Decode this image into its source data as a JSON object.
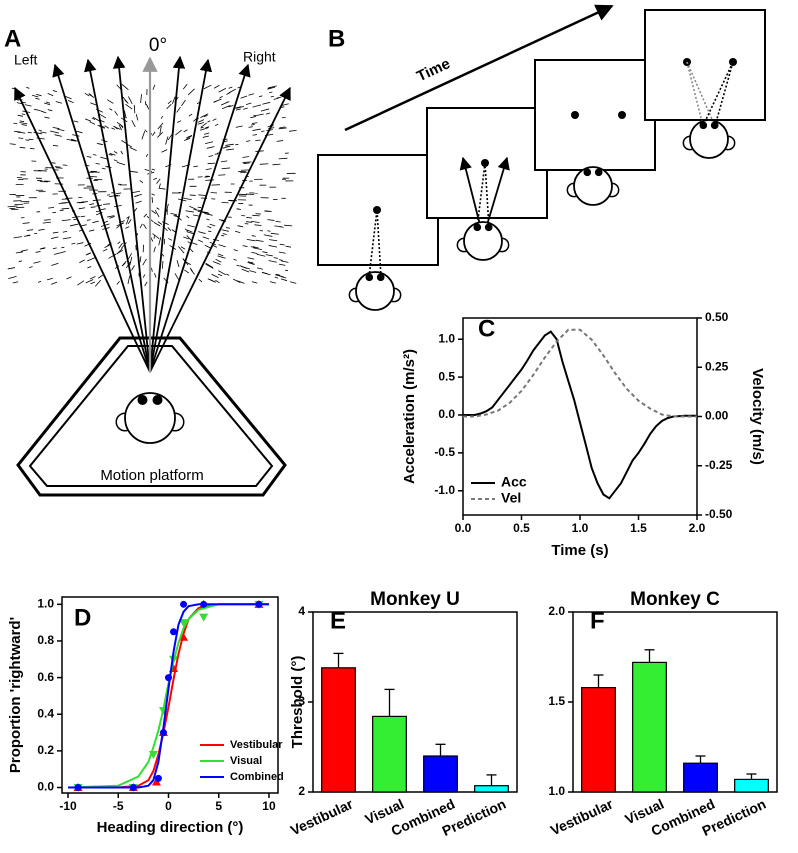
{
  "diagram": {
    "a": {
      "label": "A",
      "left": "Left",
      "zero": "0°",
      "right": "Right",
      "platform": "Motion platform"
    },
    "b": {
      "label": "B",
      "time": "Time"
    }
  },
  "chart_data": [
    {
      "type": "line",
      "panel": "C",
      "xlabel": "Time (s)",
      "ylabel": "Acceleration (m/s²)",
      "y2label": "Velocity (m/s)",
      "xlim": [
        0,
        2
      ],
      "xticks": [
        {
          "value": 0,
          "label": "0.0"
        },
        {
          "value": 0.5,
          "label": "0.5"
        },
        {
          "value": 1,
          "label": "1.0"
        },
        {
          "value": 1.5,
          "label": "1.5"
        },
        {
          "value": 2,
          "label": "2.0"
        }
      ],
      "ylim": [
        -1.32,
        1.28
      ],
      "yticks": [
        {
          "value": -1,
          "label": "-1.0"
        },
        {
          "value": -0.5,
          "label": "-0.5"
        },
        {
          "value": 0,
          "label": "0.0"
        },
        {
          "value": 0.5,
          "label": "0.5"
        },
        {
          "value": 1,
          "label": "1.0"
        }
      ],
      "y2lim": [
        -0.5,
        0.5
      ],
      "y2ticks": [
        {
          "value": -0.5,
          "label": "-0.50"
        },
        {
          "value": -0.25,
          "label": "-0.25"
        },
        {
          "value": 0,
          "label": "0.00"
        },
        {
          "value": 0.25,
          "label": "0.25"
        },
        {
          "value": 0.5,
          "label": "0.50"
        }
      ],
      "legend": "lower left",
      "series": [
        {
          "name": "Acc",
          "color": "#000000",
          "style": "solid",
          "x": [
            0,
            0.1,
            0.15,
            0.2,
            0.25,
            0.3,
            0.35,
            0.4,
            0.45,
            0.5,
            0.55,
            0.6,
            0.65,
            0.7,
            0.75,
            0.8,
            0.85,
            0.9,
            0.95,
            1,
            1.05,
            1.1,
            1.15,
            1.2,
            1.25,
            1.3,
            1.35,
            1.4,
            1.45,
            1.5,
            1.55,
            1.6,
            1.65,
            1.7,
            1.75,
            1.8,
            1.9,
            2
          ],
          "values": [
            0,
            0,
            0.02,
            0.05,
            0.1,
            0.2,
            0.3,
            0.4,
            0.5,
            0.6,
            0.72,
            0.85,
            0.95,
            1.05,
            1.1,
            1.0,
            0.7,
            0.45,
            0.2,
            -0.1,
            -0.4,
            -0.7,
            -0.9,
            -1.05,
            -1.1,
            -1.0,
            -0.9,
            -0.75,
            -0.6,
            -0.5,
            -0.38,
            -0.25,
            -0.15,
            -0.08,
            -0.04,
            -0.02,
            -0.01,
            -0.01
          ]
        },
        {
          "name": "Vel",
          "color": "#777777",
          "style": "dashed",
          "axis": "y2",
          "x": [
            0,
            0.1,
            0.2,
            0.3,
            0.4,
            0.5,
            0.6,
            0.7,
            0.8,
            0.9,
            1,
            1.1,
            1.2,
            1.3,
            1.4,
            1.5,
            1.6,
            1.7,
            1.8,
            1.9,
            2
          ],
          "values": [
            0,
            0,
            0.01,
            0.03,
            0.07,
            0.13,
            0.21,
            0.3,
            0.38,
            0.44,
            0.44,
            0.39,
            0.31,
            0.22,
            0.14,
            0.08,
            0.04,
            0.01,
            0,
            0,
            0
          ]
        }
      ]
    },
    {
      "type": "scatter",
      "panel": "D",
      "xlabel": "Heading direction (°)",
      "ylabel": "Proportion 'rightward'",
      "xlim": [
        -10.6,
        10.9
      ],
      "xticks": [
        -10,
        -5,
        0,
        5,
        10
      ],
      "ylim": [
        -0.03,
        1.04
      ],
      "yticks": [
        {
          "value": 0,
          "label": "0.0"
        },
        {
          "value": 0.2,
          "label": "0.2"
        },
        {
          "value": 0.4,
          "label": "0.4"
        },
        {
          "value": 0.6,
          "label": "0.6"
        },
        {
          "value": 0.8,
          "label": "0.8"
        },
        {
          "value": 1,
          "label": "1.0"
        }
      ],
      "legend": "lower right",
      "fit_x": [
        -10,
        -5,
        -3,
        -2,
        -1.5,
        -1,
        -0.5,
        0,
        0.5,
        1,
        1.5,
        2,
        3,
        5,
        10
      ],
      "series": [
        {
          "name": "Vestibular",
          "color": "#ff0000",
          "marker": "triangle",
          "x": [
            -9,
            -3.5,
            -1.2,
            -0.5,
            0.5,
            1.5,
            3.5,
            9
          ],
          "values": [
            0,
            0,
            0.03,
            0.3,
            0.65,
            0.82,
            1,
            1
          ],
          "fit_values": [
            0,
            0,
            0.01,
            0.04,
            0.09,
            0.18,
            0.3,
            0.44,
            0.59,
            0.73,
            0.84,
            0.92,
            0.98,
            1,
            1
          ]
        },
        {
          "name": "Visual",
          "color": "#33dd33",
          "marker": "triangle-down",
          "x": [
            -9,
            -3.5,
            -1.5,
            -0.5,
            0.5,
            1.5,
            3.5,
            9
          ],
          "values": [
            0,
            0,
            0.18,
            0.42,
            0.7,
            0.9,
            0.93,
            1
          ],
          "fit_values": [
            0,
            0.01,
            0.06,
            0.14,
            0.22,
            0.31,
            0.43,
            0.57,
            0.69,
            0.79,
            0.87,
            0.92,
            0.97,
            1,
            1
          ]
        },
        {
          "name": "Combined",
          "color": "#0000ff",
          "marker": "circle",
          "x": [
            -9,
            -3.5,
            -1,
            -0.5,
            0,
            0.5,
            1.5,
            3.5,
            9
          ],
          "values": [
            0,
            0,
            0.05,
            0.3,
            0.6,
            0.85,
            1,
            1,
            1
          ],
          "fit_values": [
            0,
            0,
            0,
            0.01,
            0.04,
            0.14,
            0.33,
            0.54,
            0.74,
            0.89,
            0.96,
            0.99,
            1,
            1,
            1
          ]
        }
      ]
    },
    {
      "type": "bar",
      "panel": "E",
      "title": "Monkey U",
      "ylabel": "Threshold (°)",
      "categories": [
        "Vestibular",
        "Visual",
        "Combined",
        "Prediction"
      ],
      "values": [
        3.38,
        2.84,
        2.4,
        2.07
      ],
      "errors": [
        0.16,
        0.3,
        0.13,
        0.12
      ],
      "colors": [
        "#ff0000",
        "#33ee33",
        "#0000ff",
        "#00ffff"
      ],
      "ylim": [
        2,
        4
      ],
      "yticks": [
        2,
        3,
        4
      ]
    },
    {
      "type": "bar",
      "panel": "F",
      "title": "Monkey C",
      "categories": [
        "Vestibular",
        "Visual",
        "Combined",
        "Prediction"
      ],
      "values": [
        1.58,
        1.72,
        1.16,
        1.07
      ],
      "errors": [
        0.07,
        0.07,
        0.04,
        0.03
      ],
      "colors": [
        "#ff0000",
        "#33ee33",
        "#0000ff",
        "#00ffff"
      ],
      "ylim": [
        1,
        2
      ],
      "yticks": [
        {
          "value": 1,
          "label": "1.0"
        },
        {
          "value": 1.5,
          "label": "1.5"
        },
        {
          "value": 2,
          "label": "2.0"
        }
      ]
    }
  ]
}
